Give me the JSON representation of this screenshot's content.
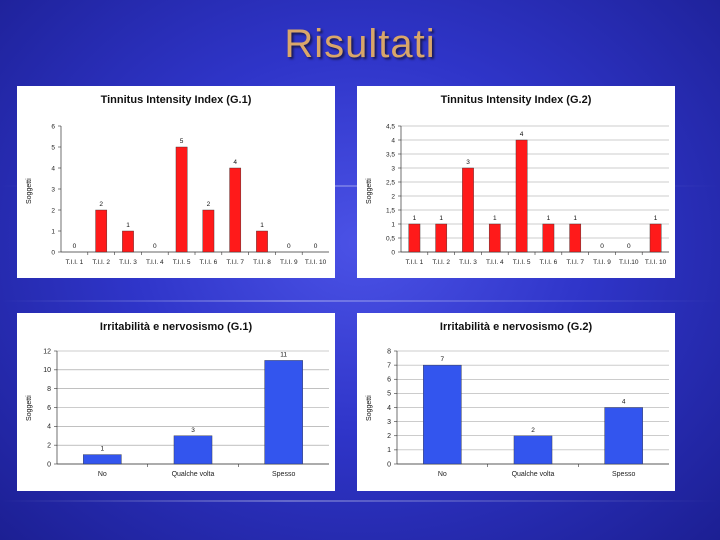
{
  "slide_title": "Risultati",
  "colors": {
    "red_bar": "#ff1a1a",
    "blue_bar": "#3355ee",
    "title": "#d9a66a"
  },
  "chart_data": [
    {
      "type": "bar",
      "title": "Tinnitus Intensity Index (G.1)",
      "ylabel": "Soggetti",
      "categories": [
        "T.I.I. 1",
        "T.I.I. 2",
        "T.I.I. 3",
        "T.I.I. 4",
        "T.I.I. 5",
        "T.I.I. 6",
        "T.I.I. 7",
        "T.I.I. 8",
        "T.I.I. 9",
        "T.I.I. 10"
      ],
      "values": [
        0,
        2,
        1,
        0,
        5,
        2,
        4,
        1,
        0,
        0
      ],
      "yticks": [
        "0",
        "1",
        "2",
        "3",
        "4",
        "5",
        "6"
      ],
      "ylim": [
        0,
        6
      ],
      "grid": false,
      "color": "#ff1a1a"
    },
    {
      "type": "bar",
      "title": "Tinnitus Intensity Index (G.2)",
      "ylabel": "Soggetti",
      "categories": [
        "T.I.I. 1",
        "T.I.I. 2",
        "T.I.I. 3",
        "T.I.I. 4",
        "T.I.I. 5",
        "T.I.I. 6",
        "T.I.I. 7",
        "T.I.I. 9",
        "T.I.I.10",
        "T.I.I. 10"
      ],
      "values": [
        1,
        1,
        3,
        1,
        4,
        1,
        1,
        0,
        0,
        1
      ],
      "yticks": [
        "0",
        "0,5",
        "1",
        "1,5",
        "2",
        "2,5",
        "3",
        "3,5",
        "4",
        "4,5"
      ],
      "ylim": [
        0,
        4.5
      ],
      "grid": true,
      "color": "#ff1a1a"
    },
    {
      "type": "bar",
      "title": "Irritabilità e nervosismo (G.1)",
      "ylabel": "Soggetti",
      "categories": [
        "No",
        "Qualche volta",
        "Spesso"
      ],
      "values": [
        1,
        3,
        11
      ],
      "yticks": [
        "0",
        "2",
        "4",
        "6",
        "8",
        "10",
        "12"
      ],
      "ylim": [
        0,
        12
      ],
      "grid": true,
      "color": "#3355ee"
    },
    {
      "type": "bar",
      "title": "Irritabilità e nervosismo (G.2)",
      "ylabel": "Soggetti",
      "categories": [
        "No",
        "Qualche volta",
        "Spesso"
      ],
      "values": [
        7,
        2,
        4
      ],
      "yticks": [
        "0",
        "1",
        "2",
        "3",
        "4",
        "5",
        "6",
        "7",
        "8"
      ],
      "ylim": [
        0,
        8
      ],
      "grid": true,
      "color": "#3355ee"
    }
  ]
}
